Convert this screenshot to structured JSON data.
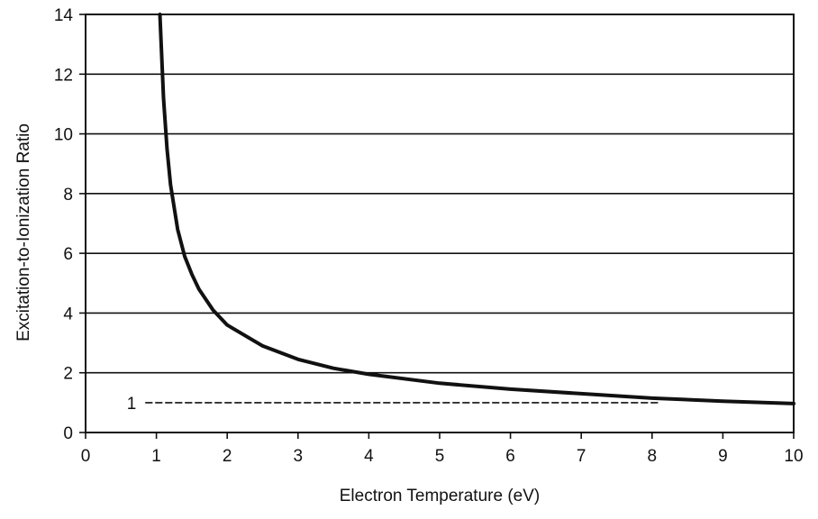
{
  "chart_data": {
    "type": "line",
    "title": "",
    "xlabel": "Electron Temperature (eV)",
    "ylabel": "Excitation-to-Ionization Ratio",
    "xlim": [
      0,
      10
    ],
    "ylim": [
      0,
      14
    ],
    "x_ticks": [
      0,
      1,
      2,
      3,
      4,
      5,
      6,
      7,
      8,
      9,
      10
    ],
    "y_ticks": [
      0,
      2,
      4,
      6,
      8,
      10,
      12,
      14
    ],
    "grid": "horizontal",
    "legend": "none",
    "series": [
      {
        "style": "solid",
        "color": "#111111",
        "x": [
          1.05,
          1.1,
          1.15,
          1.2,
          1.3,
          1.4,
          1.5,
          1.6,
          1.8,
          2.0,
          2.5,
          3.0,
          3.5,
          4.0,
          5.0,
          6.0,
          7.0,
          8.0,
          9.0,
          10.0
        ],
        "y": [
          14.0,
          11.2,
          9.5,
          8.3,
          6.8,
          5.9,
          5.3,
          4.8,
          4.1,
          3.6,
          2.9,
          2.45,
          2.15,
          1.95,
          1.65,
          1.45,
          1.3,
          1.15,
          1.05,
          0.97
        ]
      },
      {
        "style": "dashed",
        "color": "#111111",
        "x": [
          0.85,
          8.1
        ],
        "y": [
          1.0,
          1.0
        ]
      }
    ],
    "annotations": [
      {
        "text": "1",
        "x": 0.7,
        "y": 1.0
      }
    ]
  }
}
